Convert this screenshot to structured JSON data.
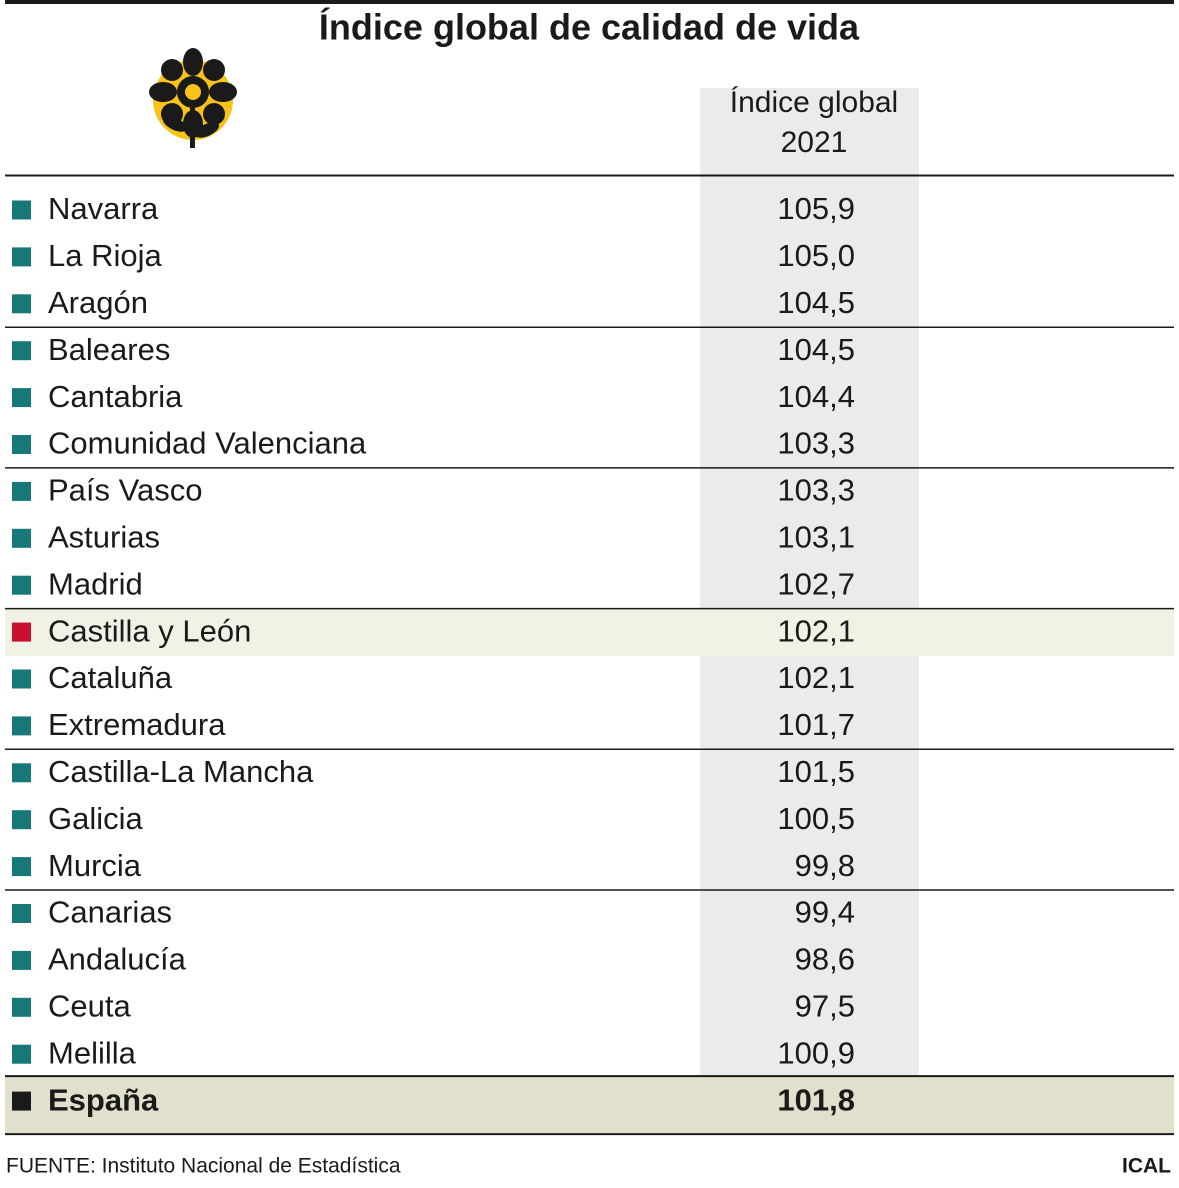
{
  "title": "Índice global de calidad de vida",
  "header": {
    "column": [
      "Índice global",
      "2021"
    ]
  },
  "table": {
    "rows": [
      {
        "name": "Navarra",
        "value": "105,9",
        "color": "#17787a"
      },
      {
        "name": "La Rioja",
        "value": "105,0",
        "color": "#17787a"
      },
      {
        "name": "Aragón",
        "value": "104,5",
        "color": "#17787a"
      },
      {
        "name": "Baleares",
        "value": "104,5",
        "color": "#17787a"
      },
      {
        "name": "Cantabria",
        "value": "104,4",
        "color": "#17787a"
      },
      {
        "name": "Comunidad Valenciana",
        "value": "103,3",
        "color": "#17787a"
      },
      {
        "name": "País Vasco",
        "value": "103,3",
        "color": "#17787a"
      },
      {
        "name": "Asturias",
        "value": "103,1",
        "color": "#17787a"
      },
      {
        "name": "Madrid",
        "value": "102,7",
        "color": "#17787a"
      },
      {
        "name": "Castilla y León",
        "value": "102,1",
        "color": "#c8102e"
      },
      {
        "name": "Cataluña",
        "value": "102,1",
        "color": "#17787a"
      },
      {
        "name": "Extremadura",
        "value": "101,7",
        "color": "#17787a"
      },
      {
        "name": "Castilla-La Mancha",
        "value": "101,5",
        "color": "#17787a"
      },
      {
        "name": "Galicia",
        "value": "100,5",
        "color": "#17787a"
      },
      {
        "name": "Murcia",
        "value": "99,8",
        "color": "#17787a"
      },
      {
        "name": "Canarias",
        "value": "99,4",
        "color": "#17787a"
      },
      {
        "name": "Andalucía",
        "value": "98,6",
        "color": "#17787a"
      },
      {
        "name": "Ceuta",
        "value": "97,5",
        "color": "#17787a"
      },
      {
        "name": "Melilla",
        "value": "100,9",
        "color": "#17787a"
      }
    ],
    "total": {
      "name": "España",
      "value": "101,8",
      "color": "#1a1a1a"
    }
  },
  "footer": {
    "source": "FUENTE: Instituto Nacional de Estadística",
    "brand": "ICAL"
  }
}
